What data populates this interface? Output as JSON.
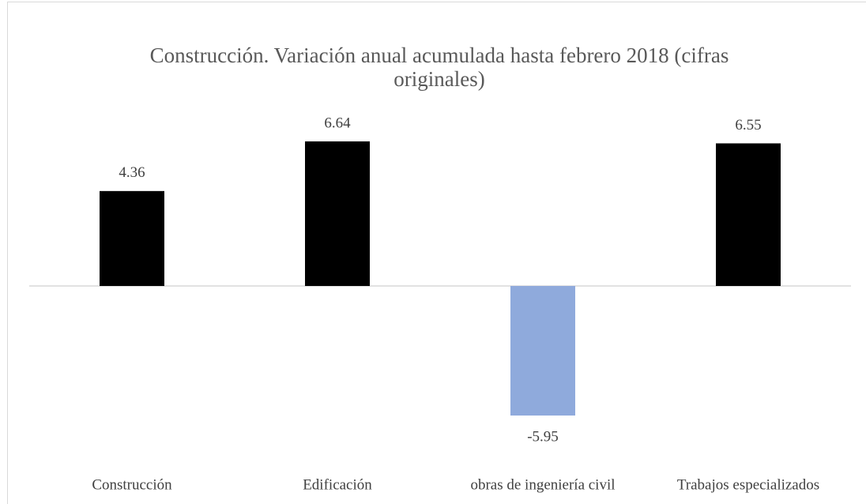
{
  "chart_data": {
    "type": "bar",
    "title": "Construcción. Variación anual acumulada hasta febrero 2018 (cifras originales)",
    "categories": [
      "Construcción",
      "Edificación",
      "obras de ingeniería civil",
      "Trabajos especializados"
    ],
    "values": [
      4.36,
      6.64,
      -5.95,
      6.55
    ],
    "colors": [
      "#000000",
      "#000000",
      "#8faadc",
      "#000000"
    ]
  }
}
